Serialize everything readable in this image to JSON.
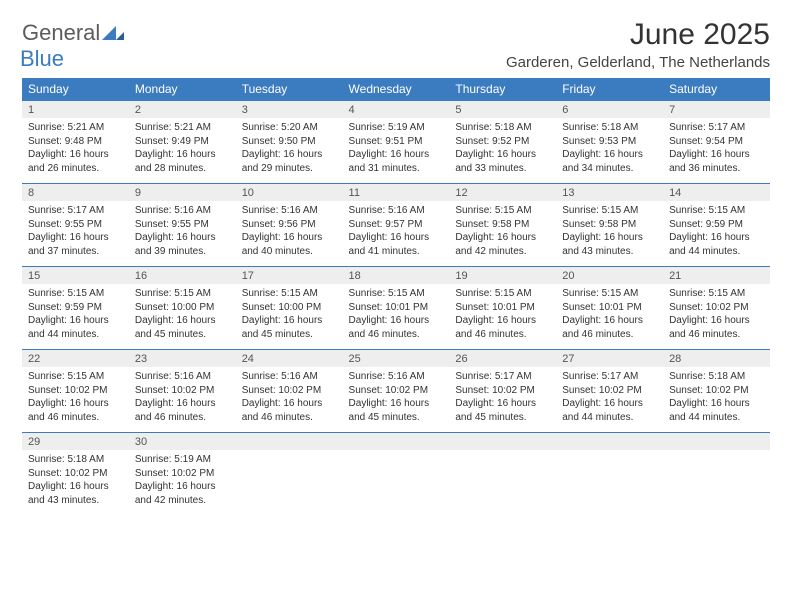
{
  "brand": {
    "part1": "General",
    "part2": "Blue"
  },
  "title": "June 2025",
  "location": "Garderen, Gelderland, The Netherlands",
  "colors": {
    "header_bg": "#3b7bbf",
    "header_fg": "#ffffff",
    "daynum_bg": "#eeeeee",
    "row_border": "#3b7bbf",
    "logo_gray": "#5c5c5c",
    "logo_blue": "#3b7bbf"
  },
  "weekdays": [
    "Sunday",
    "Monday",
    "Tuesday",
    "Wednesday",
    "Thursday",
    "Friday",
    "Saturday"
  ],
  "weeks": [
    [
      {
        "n": "1",
        "sr": "5:21 AM",
        "ss": "9:48 PM",
        "dl": "16 hours and 26 minutes."
      },
      {
        "n": "2",
        "sr": "5:21 AM",
        "ss": "9:49 PM",
        "dl": "16 hours and 28 minutes."
      },
      {
        "n": "3",
        "sr": "5:20 AM",
        "ss": "9:50 PM",
        "dl": "16 hours and 29 minutes."
      },
      {
        "n": "4",
        "sr": "5:19 AM",
        "ss": "9:51 PM",
        "dl": "16 hours and 31 minutes."
      },
      {
        "n": "5",
        "sr": "5:18 AM",
        "ss": "9:52 PM",
        "dl": "16 hours and 33 minutes."
      },
      {
        "n": "6",
        "sr": "5:18 AM",
        "ss": "9:53 PM",
        "dl": "16 hours and 34 minutes."
      },
      {
        "n": "7",
        "sr": "5:17 AM",
        "ss": "9:54 PM",
        "dl": "16 hours and 36 minutes."
      }
    ],
    [
      {
        "n": "8",
        "sr": "5:17 AM",
        "ss": "9:55 PM",
        "dl": "16 hours and 37 minutes."
      },
      {
        "n": "9",
        "sr": "5:16 AM",
        "ss": "9:55 PM",
        "dl": "16 hours and 39 minutes."
      },
      {
        "n": "10",
        "sr": "5:16 AM",
        "ss": "9:56 PM",
        "dl": "16 hours and 40 minutes."
      },
      {
        "n": "11",
        "sr": "5:16 AM",
        "ss": "9:57 PM",
        "dl": "16 hours and 41 minutes."
      },
      {
        "n": "12",
        "sr": "5:15 AM",
        "ss": "9:58 PM",
        "dl": "16 hours and 42 minutes."
      },
      {
        "n": "13",
        "sr": "5:15 AM",
        "ss": "9:58 PM",
        "dl": "16 hours and 43 minutes."
      },
      {
        "n": "14",
        "sr": "5:15 AM",
        "ss": "9:59 PM",
        "dl": "16 hours and 44 minutes."
      }
    ],
    [
      {
        "n": "15",
        "sr": "5:15 AM",
        "ss": "9:59 PM",
        "dl": "16 hours and 44 minutes."
      },
      {
        "n": "16",
        "sr": "5:15 AM",
        "ss": "10:00 PM",
        "dl": "16 hours and 45 minutes."
      },
      {
        "n": "17",
        "sr": "5:15 AM",
        "ss": "10:00 PM",
        "dl": "16 hours and 45 minutes."
      },
      {
        "n": "18",
        "sr": "5:15 AM",
        "ss": "10:01 PM",
        "dl": "16 hours and 46 minutes."
      },
      {
        "n": "19",
        "sr": "5:15 AM",
        "ss": "10:01 PM",
        "dl": "16 hours and 46 minutes."
      },
      {
        "n": "20",
        "sr": "5:15 AM",
        "ss": "10:01 PM",
        "dl": "16 hours and 46 minutes."
      },
      {
        "n": "21",
        "sr": "5:15 AM",
        "ss": "10:02 PM",
        "dl": "16 hours and 46 minutes."
      }
    ],
    [
      {
        "n": "22",
        "sr": "5:15 AM",
        "ss": "10:02 PM",
        "dl": "16 hours and 46 minutes."
      },
      {
        "n": "23",
        "sr": "5:16 AM",
        "ss": "10:02 PM",
        "dl": "16 hours and 46 minutes."
      },
      {
        "n": "24",
        "sr": "5:16 AM",
        "ss": "10:02 PM",
        "dl": "16 hours and 46 minutes."
      },
      {
        "n": "25",
        "sr": "5:16 AM",
        "ss": "10:02 PM",
        "dl": "16 hours and 45 minutes."
      },
      {
        "n": "26",
        "sr": "5:17 AM",
        "ss": "10:02 PM",
        "dl": "16 hours and 45 minutes."
      },
      {
        "n": "27",
        "sr": "5:17 AM",
        "ss": "10:02 PM",
        "dl": "16 hours and 44 minutes."
      },
      {
        "n": "28",
        "sr": "5:18 AM",
        "ss": "10:02 PM",
        "dl": "16 hours and 44 minutes."
      }
    ],
    [
      {
        "n": "29",
        "sr": "5:18 AM",
        "ss": "10:02 PM",
        "dl": "16 hours and 43 minutes."
      },
      {
        "n": "30",
        "sr": "5:19 AM",
        "ss": "10:02 PM",
        "dl": "16 hours and 42 minutes."
      },
      null,
      null,
      null,
      null,
      null
    ]
  ],
  "labels": {
    "sunrise": "Sunrise: ",
    "sunset": "Sunset: ",
    "daylight": "Daylight: "
  }
}
